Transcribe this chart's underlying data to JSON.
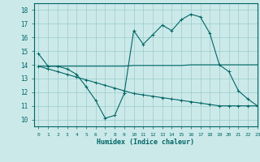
{
  "title": "",
  "xlabel": "Humidex (Indice chaleur)",
  "bg_color": "#cce9e9",
  "line_color": "#006666",
  "grid_color": "#99cccc",
  "xlim": [
    -0.5,
    23
  ],
  "ylim": [
    9.5,
    18.5
  ],
  "xticks": [
    0,
    1,
    2,
    3,
    4,
    5,
    6,
    7,
    8,
    9,
    10,
    11,
    12,
    13,
    14,
    15,
    16,
    17,
    18,
    19,
    20,
    21,
    22,
    23
  ],
  "yticks": [
    10,
    11,
    12,
    13,
    14,
    15,
    16,
    17,
    18
  ],
  "x": [
    0,
    1,
    2,
    3,
    4,
    5,
    6,
    7,
    8,
    9,
    10,
    11,
    12,
    13,
    14,
    15,
    16,
    17,
    18,
    19,
    20,
    21,
    22,
    23
  ],
  "y_main": [
    14.8,
    13.9,
    13.9,
    13.7,
    13.3,
    12.4,
    11.4,
    10.1,
    10.3,
    11.9,
    16.5,
    15.5,
    16.2,
    16.9,
    16.5,
    17.3,
    17.7,
    17.5,
    16.3,
    14.0,
    13.5,
    12.1,
    11.5,
    11.0
  ],
  "y_flat": [
    13.9,
    13.9,
    13.9,
    13.9,
    13.9,
    13.9,
    13.9,
    13.9,
    13.9,
    13.9,
    13.95,
    13.95,
    13.95,
    13.95,
    13.95,
    13.95,
    14.0,
    14.0,
    14.0,
    14.0,
    14.0,
    14.0,
    14.0,
    14.0
  ],
  "y_decline": [
    13.9,
    13.7,
    13.5,
    13.3,
    13.1,
    12.9,
    12.7,
    12.5,
    12.3,
    12.1,
    11.9,
    11.8,
    11.7,
    11.6,
    11.5,
    11.4,
    11.3,
    11.2,
    11.1,
    11.0,
    11.0,
    11.0,
    11.0,
    11.0
  ]
}
